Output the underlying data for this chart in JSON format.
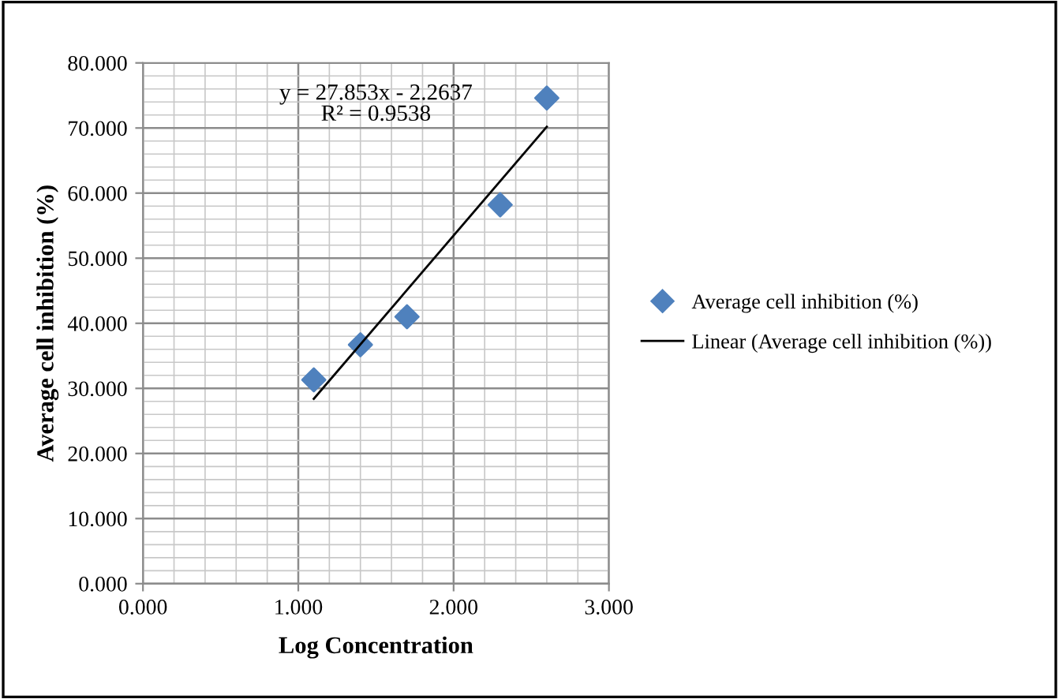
{
  "chart_data": {
    "type": "scatter",
    "xlabel": "Log Concentration",
    "ylabel": "Average cell inhibition (%)",
    "xlim": [
      0,
      3
    ],
    "xticks": [
      {
        "value": 0,
        "label": "0.000"
      },
      {
        "value": 1,
        "label": "1.000"
      },
      {
        "value": 2,
        "label": "2.000"
      },
      {
        "value": 3,
        "label": "3.000"
      }
    ],
    "ylim": [
      0,
      80
    ],
    "yticks": [
      {
        "value": 0,
        "label": "0.000"
      },
      {
        "value": 10,
        "label": "10.000"
      },
      {
        "value": 20,
        "label": "20.000"
      },
      {
        "value": 30,
        "label": "30.000"
      },
      {
        "value": 40,
        "label": "40.000"
      },
      {
        "value": 50,
        "label": "50.000"
      },
      {
        "value": 60,
        "label": "60.000"
      },
      {
        "value": 70,
        "label": "70.000"
      },
      {
        "value": 80,
        "label": "80.000"
      }
    ],
    "grid": true,
    "legend": "right",
    "series": [
      {
        "name": "Average cell inhibition (%)",
        "marker": "diamond",
        "color": "#4f81bd",
        "x": [
          1.1,
          1.4,
          1.7,
          2.3,
          2.6
        ],
        "values": [
          31.3,
          36.7,
          41.0,
          58.2,
          74.6
        ]
      },
      {
        "name": "Linear (Average cell inhibition (%))",
        "type": "line",
        "color": "#000000",
        "x": [
          1.1,
          2.6
        ],
        "values": [
          28.4,
          70.2
        ]
      }
    ],
    "annotations": [
      "y = 27.853x - 2.2637\nR² = 0.9538"
    ]
  }
}
